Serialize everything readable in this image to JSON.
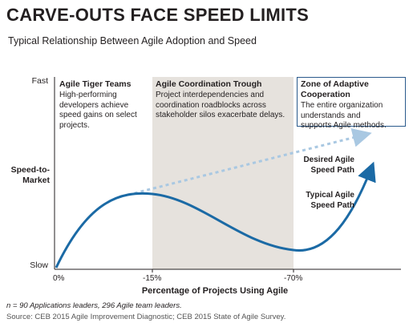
{
  "title": "CARVE-OUTS FACE SPEED LIMITS",
  "subtitle": "Typical Relationship Between Agile Adoption and Speed",
  "colors": {
    "curve": "#1b6aa5",
    "desired": "#a9c8e2",
    "trough_bg": "#e6e2dd",
    "box_border": "#2a5a8c",
    "axis": "#231f20"
  },
  "chart_data": {
    "type": "line",
    "xlabel": "Percentage of Projects Using Agile",
    "ylabel": "Speed-to-Market",
    "x_ticks": [
      "0%",
      "-15%",
      "-70%"
    ],
    "y_ticks": [
      "Fast",
      "Speed-to-Market",
      "Slow"
    ],
    "zones": [
      {
        "name": "Agile Tiger Teams",
        "text": [
          "High-performing",
          "developers achieve",
          "speed gains on select",
          "projects."
        ]
      },
      {
        "name": "Agile Coordination Trough",
        "text": [
          "Project interdependencies and",
          "coordination roadblocks across",
          "stakeholder silos exacerbate delays."
        ]
      },
      {
        "name_lines": [
          "Zone of Adaptive",
          "Cooperation"
        ],
        "text": [
          "The entire organization",
          "understands and",
          "supports Agile methods."
        ]
      }
    ],
    "series": [
      {
        "name_lines": [
          "Desired Agile",
          "Speed Path"
        ],
        "style": "dashed-arrow"
      },
      {
        "name_lines": [
          "Typical Agile",
          "Speed Path"
        ],
        "style": "solid-arrow"
      }
    ]
  },
  "footnote": "n = 90 Applications leaders, 296 Agile team leaders.",
  "source": "Source: CEB 2015 Agile Improvement Diagnostic; CEB 2015 State of Agile Survey."
}
